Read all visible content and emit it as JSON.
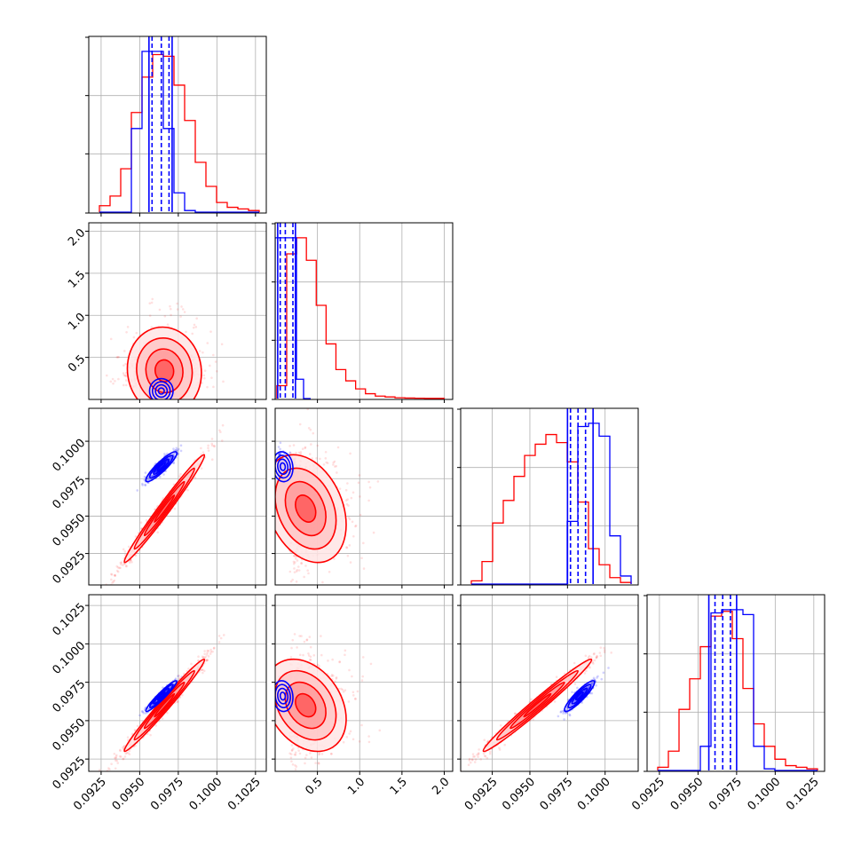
{
  "chart_data": {
    "type": "corner",
    "series": [
      {
        "name": "",
        "color": "#ff0000"
      },
      {
        "name": "",
        "color": "#0000ff"
      }
    ],
    "parameters": [
      {
        "range": [
          0.0917,
          0.1032
        ],
        "ticks": [
          "0.0925",
          "0.0950",
          "0.0975",
          "0.1000",
          "0.1025"
        ],
        "tick_values": [
          0.0925,
          0.095,
          0.0975,
          0.1,
          0.1025
        ]
      },
      {
        "range": [
          0.0,
          2.1
        ],
        "ticks": [
          "0.5",
          "1.0",
          "1.5",
          "2.0"
        ],
        "tick_values": [
          0.5,
          1.0,
          1.5,
          2.0
        ]
      },
      {
        "range": [
          0.0904,
          0.1022
        ],
        "ticks": [
          "0.0925",
          "0.0950",
          "0.0975",
          "0.1000"
        ],
        "tick_values": [
          0.0925,
          0.095,
          0.0975,
          0.1
        ]
      },
      {
        "range": [
          0.0917,
          0.1032
        ],
        "ticks": [
          "0.0925",
          "0.0950",
          "0.0975",
          "0.1000",
          "0.1025"
        ],
        "tick_values": [
          0.0925,
          0.095,
          0.0975,
          0.1,
          0.1025
        ]
      }
    ],
    "grid": true,
    "histograms": [
      {
        "red": [
          0.04,
          0.1,
          0.27,
          0.62,
          0.84,
          0.98,
          0.97,
          0.79,
          0.57,
          0.31,
          0.16,
          0.06,
          0.03,
          0.02,
          0.01
        ],
        "blue": [
          0,
          0,
          0,
          0.52,
          1.0,
          1.0,
          0.52,
          0.12,
          0.01,
          0,
          0,
          0,
          0,
          0,
          0
        ],
        "blue_quantiles_dashed": [
          0.0958,
          0.0964,
          0.0969
        ],
        "blue_bounds_solid": [
          0.0956,
          0.0971
        ]
      },
      {
        "red": [
          0.08,
          0.9,
          1.0,
          0.86,
          0.58,
          0.34,
          0.18,
          0.11,
          0.06,
          0.03,
          0.015,
          0.01,
          0.005,
          0.003,
          0.002,
          0.001,
          0.001
        ],
        "blue": [
          1.0,
          1.0,
          1.0,
          0.12,
          0.0
        ],
        "blue_quantiles_dashed": [
          0.06,
          0.12,
          0.21
        ],
        "blue_bounds_solid": [
          0.03,
          0.24
        ]
      },
      {
        "red": [
          0.02,
          0.14,
          0.38,
          0.52,
          0.67,
          0.8,
          0.87,
          0.93,
          0.88,
          0.76,
          0.51,
          0.22,
          0.12,
          0.04,
          0.01
        ],
        "blue": [
          0,
          0,
          0,
          0,
          0,
          0,
          0,
          0,
          0,
          0.39,
          0.98,
          1.0,
          0.92,
          0.3,
          0.05
        ],
        "blue_quantiles_dashed": [
          0.0977,
          0.0982,
          0.0987
        ],
        "blue_bounds_solid": [
          0.0975,
          0.0992
        ]
      },
      {
        "red": [
          0.02,
          0.12,
          0.38,
          0.57,
          0.77,
          0.96,
          0.99,
          0.82,
          0.51,
          0.29,
          0.15,
          0.07,
          0.03,
          0.02,
          0.01
        ],
        "blue": [
          0,
          0,
          0,
          0,
          0.15,
          0.98,
          1.0,
          1.0,
          0.97,
          0.15,
          0.01,
          0,
          0,
          0,
          0
        ],
        "blue_quantiles_dashed": [
          0.0961,
          0.0966,
          0.0971
        ],
        "blue_bounds_solid": [
          0.0957,
          0.0975
        ]
      }
    ],
    "scatter_panels": [
      {
        "row": 1,
        "col": 0,
        "red": {
          "mean": [
            0.0966,
            0.34
          ],
          "sd": [
            0.0012,
            0.26
          ],
          "corr": -0.05
        },
        "blue": {
          "mean": [
            0.0964,
            0.1
          ],
          "sd": [
            0.0004,
            0.07
          ],
          "corr": 0.0
        }
      },
      {
        "row": 2,
        "col": 0,
        "red": {
          "mean": [
            0.0966,
            0.0955
          ],
          "sd": [
            0.0013,
            0.0018
          ],
          "corr": 0.985
        },
        "blue": {
          "mean": [
            0.0964,
            0.0983
          ],
          "sd": [
            0.0005,
            0.0005
          ],
          "corr": 0.9
        }
      },
      {
        "row": 2,
        "col": 1,
        "red": {
          "mean": [
            0.36,
            0.0955
          ],
          "sd": [
            0.24,
            0.0018
          ],
          "corr": -0.3
        },
        "blue": {
          "mean": [
            0.09,
            0.0983
          ],
          "sd": [
            0.06,
            0.0005
          ],
          "corr": -0.1
        }
      },
      {
        "row": 3,
        "col": 0,
        "red": {
          "mean": [
            0.0966,
            0.096
          ],
          "sd": [
            0.0013,
            0.0015
          ],
          "corr": 0.985
        },
        "blue": {
          "mean": [
            0.0964,
            0.0966
          ],
          "sd": [
            0.0005,
            0.0005
          ],
          "corr": 0.95
        }
      },
      {
        "row": 3,
        "col": 1,
        "red": {
          "mean": [
            0.36,
            0.096
          ],
          "sd": [
            0.24,
            0.0015
          ],
          "corr": -0.3
        },
        "blue": {
          "mean": [
            0.09,
            0.0966
          ],
          "sd": [
            0.06,
            0.0005
          ],
          "corr": -0.1
        }
      },
      {
        "row": 3,
        "col": 2,
        "red": {
          "mean": [
            0.0955,
            0.096
          ],
          "sd": [
            0.0018,
            0.0015
          ],
          "corr": 0.985
        },
        "blue": {
          "mean": [
            0.0983,
            0.0966
          ],
          "sd": [
            0.0005,
            0.0005
          ],
          "corr": 0.9
        }
      }
    ]
  }
}
